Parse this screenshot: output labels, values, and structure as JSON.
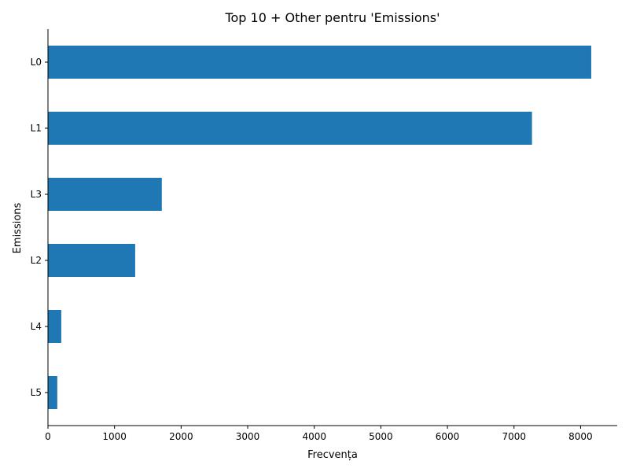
{
  "chart_data": {
    "type": "bar",
    "orientation": "horizontal",
    "title": "Top 10 + Other pentru 'Emissions'",
    "xlabel": "Frecvența",
    "ylabel": "Emissions",
    "categories": [
      "L0",
      "L1",
      "L3",
      "L2",
      "L4",
      "L5"
    ],
    "values": [
      8160,
      7270,
      1710,
      1310,
      200,
      140
    ],
    "xlim": [
      0,
      8550
    ],
    "xticks": [
      0,
      1000,
      2000,
      3000,
      4000,
      5000,
      6000,
      7000,
      8000
    ],
    "bar_color": "#1f77b4",
    "grid": false,
    "legend": "none"
  }
}
